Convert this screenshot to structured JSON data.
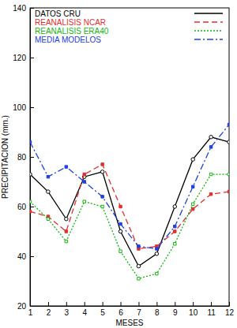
{
  "chart_data": {
    "type": "line",
    "x_label": "MESES",
    "y_label": "PRECIPITACION (mm.)",
    "x": [
      1,
      2,
      3,
      4,
      5,
      6,
      7,
      8,
      9,
      10,
      11,
      12
    ],
    "xlim": [
      1,
      12
    ],
    "xticks": [
      1,
      2,
      3,
      4,
      5,
      6,
      7,
      8,
      9,
      10,
      11,
      12
    ],
    "ylim": [
      20,
      140
    ],
    "yticks": [
      20,
      40,
      60,
      80,
      100,
      120,
      140
    ],
    "legend": "upper left",
    "series": [
      {
        "name": "DATOS CRU",
        "color": "#000000",
        "line_style": "solid",
        "marker": "open-circle",
        "values": [
          73,
          66,
          55,
          72,
          74,
          50,
          36,
          41,
          60,
          79,
          88,
          86
        ]
      },
      {
        "name": "REANALISIS NCAR",
        "color": "#e03030",
        "line_style": "dashed",
        "marker": "filled-square",
        "values": [
          58,
          56,
          50,
          73,
          77,
          60,
          43,
          44,
          50,
          59,
          65,
          66
        ]
      },
      {
        "name": "REANALISIS ERA40",
        "color": "#10b810",
        "line_style": "dotted",
        "marker": "open-square",
        "values": [
          62,
          55,
          46,
          62,
          60,
          42,
          31,
          33,
          45,
          61,
          73,
          73
        ]
      },
      {
        "name": "MEDIA MODELOS",
        "color": "#2040e0",
        "line_style": "dashdot",
        "marker": "filled-square",
        "values": [
          86,
          72,
          76,
          70,
          64,
          53,
          44,
          43,
          52,
          68,
          84,
          93
        ]
      }
    ]
  }
}
